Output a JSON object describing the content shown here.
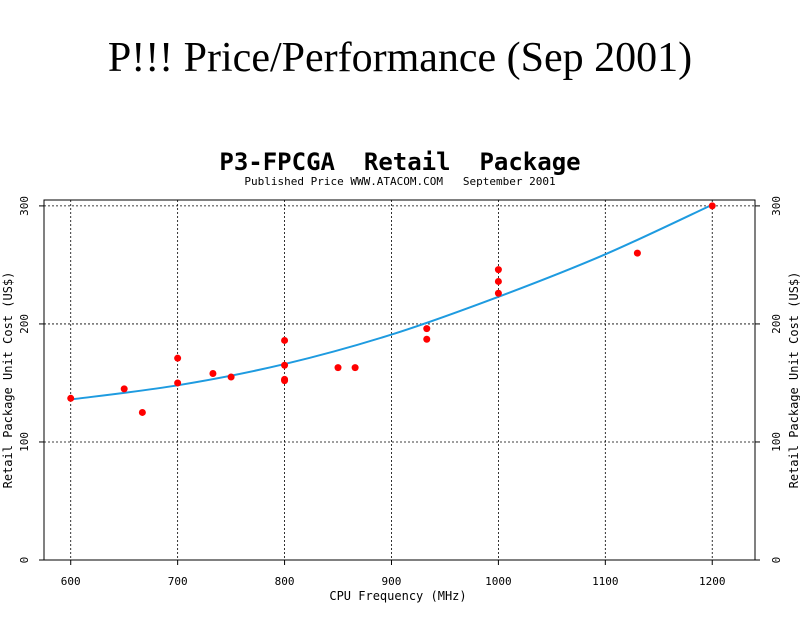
{
  "page": {
    "title": "P!!! Price/Performance (Sep 2001)"
  },
  "chart_data": {
    "type": "scatter",
    "title": "P3-FPCGA  Retail  Package",
    "subtitle": "Published Price WWW.ATACOM.COM   September 2001",
    "xlabel": "CPU Frequency (MHz)",
    "ylabel": "Retail Package Unit Cost (US$)",
    "ylabel_right": "Retail Package Unit Cost (US$)",
    "xlim": [
      575,
      1240
    ],
    "ylim": [
      0,
      305
    ],
    "x_ticks": [
      600,
      700,
      800,
      900,
      1000,
      1100,
      1200
    ],
    "y_ticks": [
      0,
      100,
      200,
      300
    ],
    "grid": true,
    "series": [
      {
        "kind": "points",
        "color": "#ff0000",
        "points": [
          [
            600,
            137
          ],
          [
            650,
            145
          ],
          [
            667,
            125
          ],
          [
            700,
            171
          ],
          [
            700,
            150
          ],
          [
            733,
            158
          ],
          [
            750,
            155
          ],
          [
            800,
            186
          ],
          [
            800,
            165
          ],
          [
            800,
            153
          ],
          [
            800,
            152
          ],
          [
            850,
            163
          ],
          [
            866,
            163
          ],
          [
            933,
            196
          ],
          [
            933,
            187
          ],
          [
            1000,
            246
          ],
          [
            1000,
            236
          ],
          [
            1000,
            226
          ],
          [
            1130,
            260
          ],
          [
            1200,
            300
          ]
        ]
      },
      {
        "kind": "fit",
        "color": "#1e9be0",
        "x": [
          600,
          700,
          800,
          900,
          1000,
          1100,
          1200
        ],
        "y": [
          136,
          148,
          166,
          191,
          223,
          259,
          301
        ]
      }
    ]
  }
}
